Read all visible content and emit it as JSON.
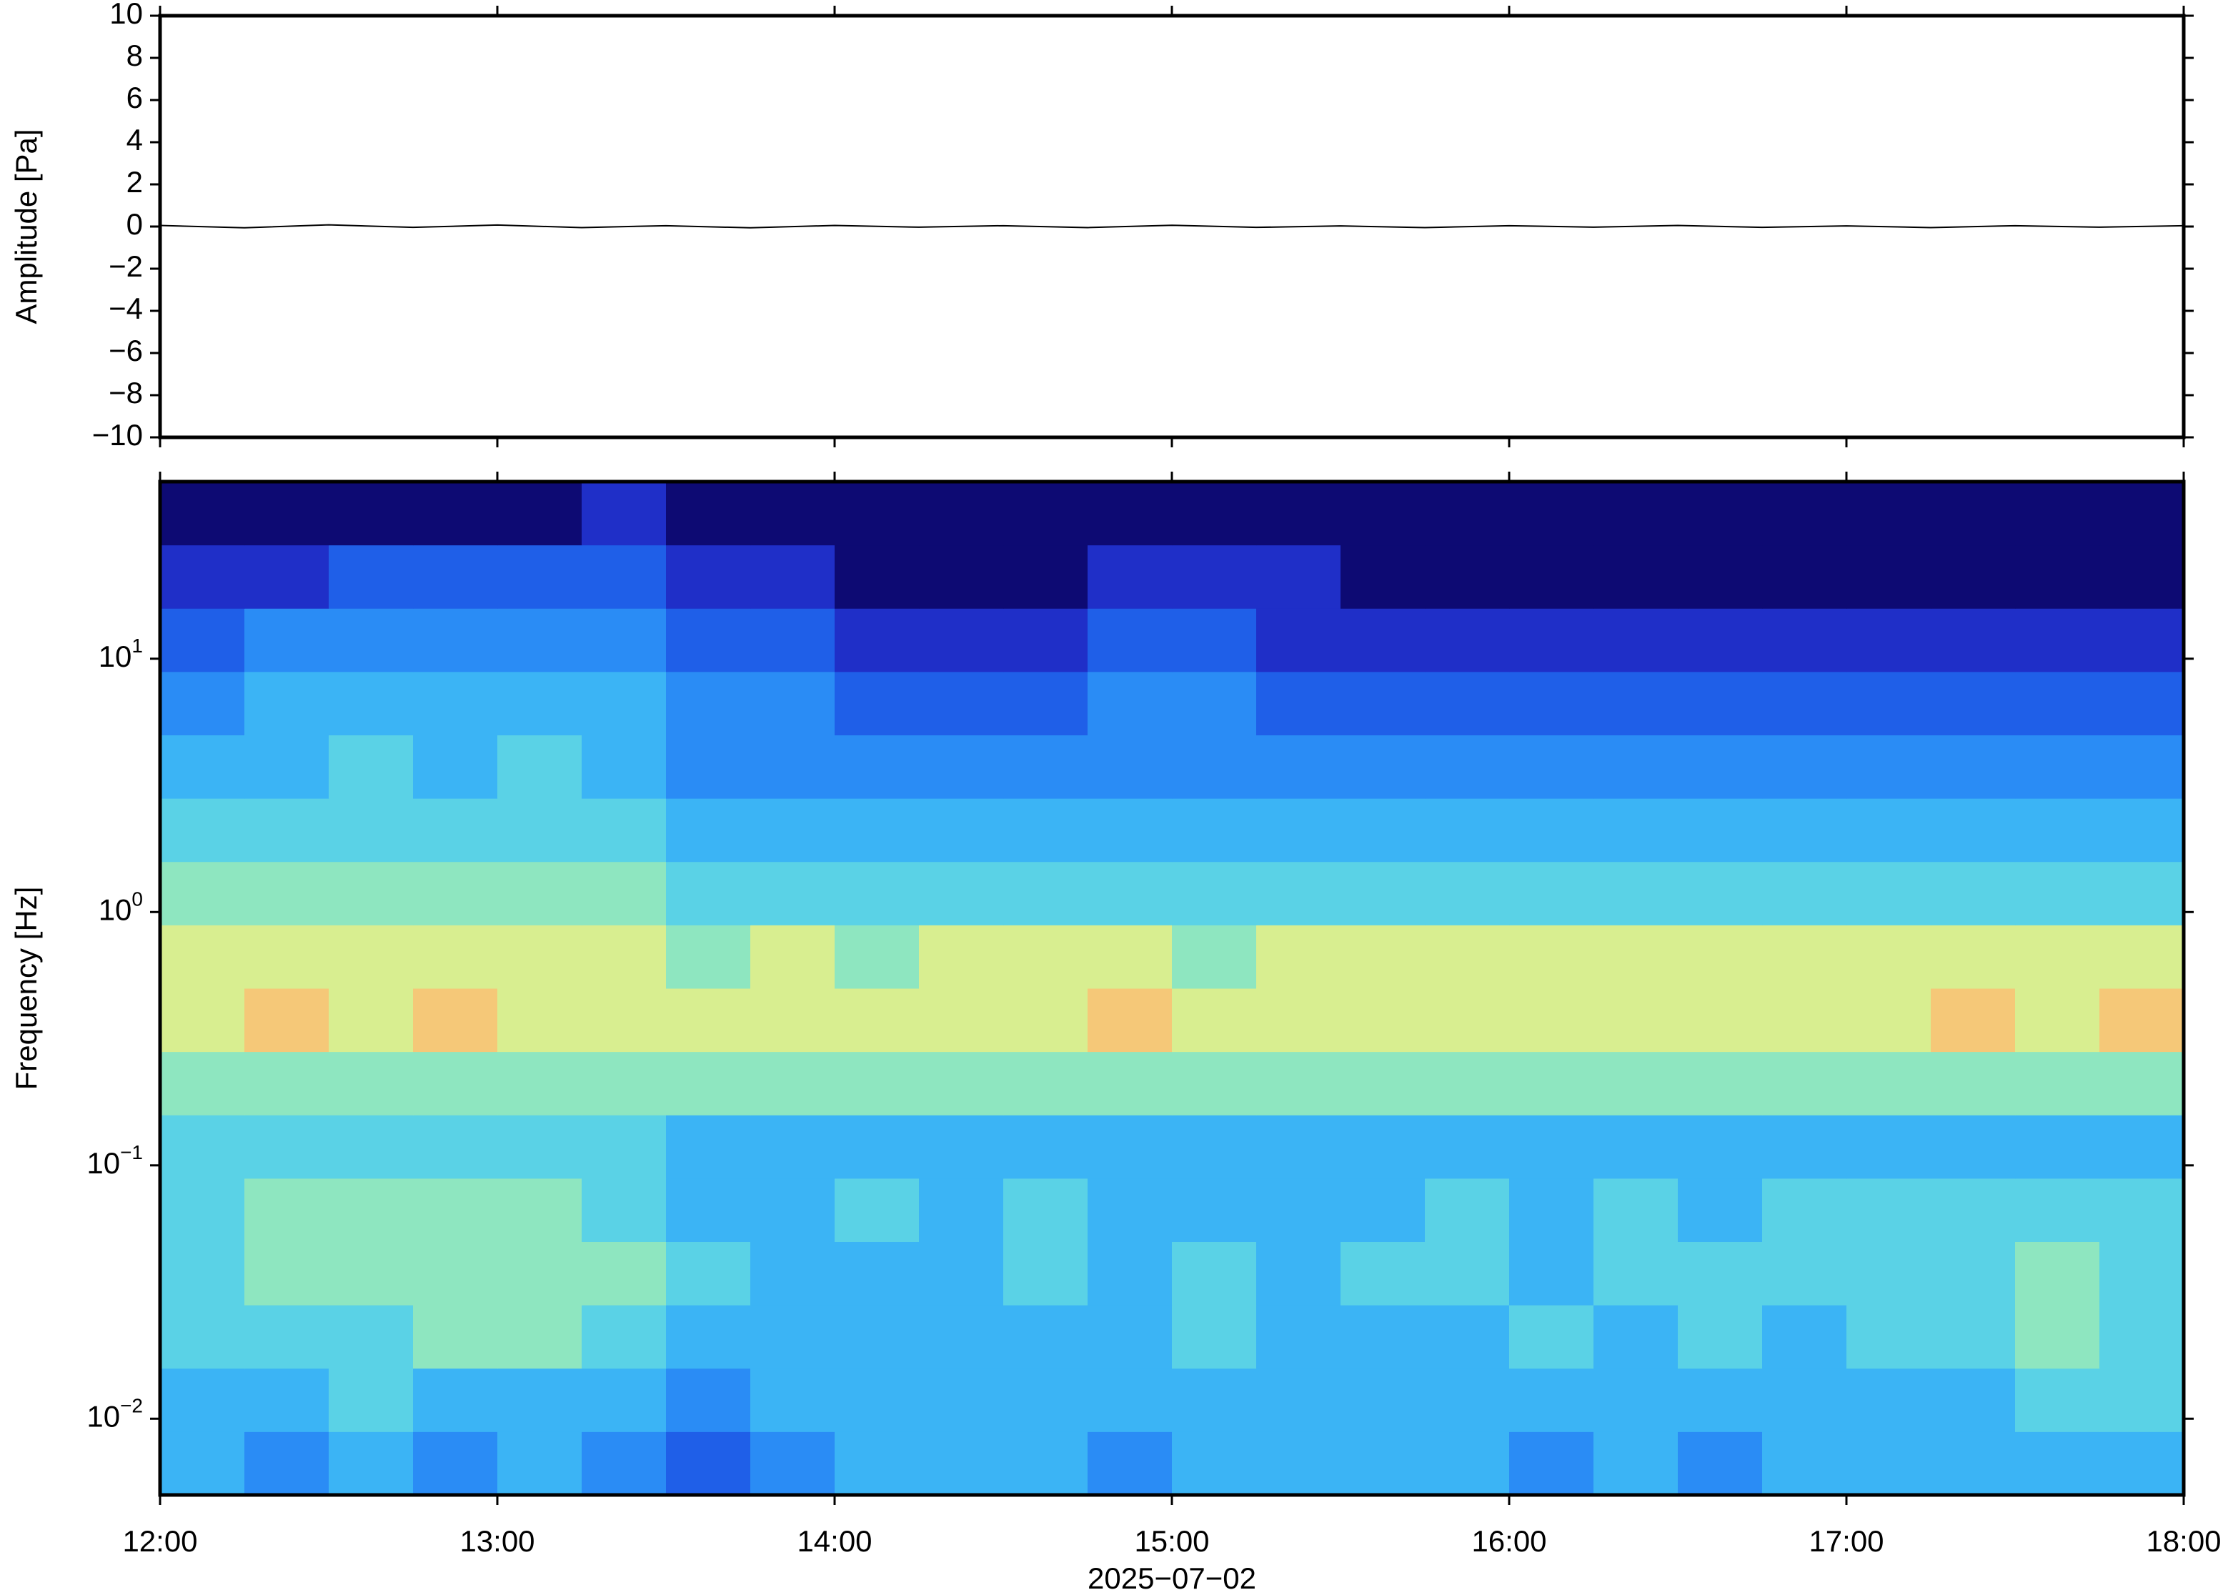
{
  "chart_data": [
    {
      "type": "line",
      "ylabel": "Amplitude [Pa]",
      "color": "#000000",
      "x": [
        12,
        12.25,
        12.5,
        12.75,
        13,
        13.25,
        13.5,
        13.75,
        14,
        14.25,
        14.5,
        14.75,
        15,
        15.25,
        15.5,
        15.75,
        16,
        16.25,
        16.5,
        16.75,
        17,
        17.25,
        17.5,
        17.75,
        18
      ],
      "values": [
        0.05,
        -0.06,
        0.08,
        -0.04,
        0.07,
        -0.05,
        0.04,
        -0.06,
        0.05,
        -0.03,
        0.04,
        -0.05,
        0.06,
        -0.04,
        0.03,
        -0.05,
        0.04,
        -0.03,
        0.05,
        -0.04,
        0.03,
        -0.05,
        0.04,
        -0.03,
        0.04
      ],
      "xlim": [
        12,
        18
      ],
      "xticks": [
        12,
        13,
        14,
        15,
        16,
        17,
        18
      ],
      "ylim": [
        -10,
        10
      ],
      "yticks": [
        {
          "value": -10,
          "label": "−10"
        },
        {
          "value": -8,
          "label": "−8"
        },
        {
          "value": -6,
          "label": "−6"
        },
        {
          "value": -4,
          "label": "−4"
        },
        {
          "value": -2,
          "label": "−2"
        },
        0,
        2,
        4,
        6,
        8,
        10
      ]
    },
    {
      "type": "heatmap",
      "ylabel": "Frequency [Hz]",
      "xlabel": "2025−07−02",
      "yscale": "log",
      "xlim": [
        12,
        18
      ],
      "xticks": [
        {
          "value": 12,
          "label": "12:00"
        },
        {
          "value": 13,
          "label": "13:00"
        },
        {
          "value": 14,
          "label": "14:00"
        },
        {
          "value": 15,
          "label": "15:00"
        },
        {
          "value": 16,
          "label": "16:00"
        },
        {
          "value": 17,
          "label": "17:00"
        },
        {
          "value": 18,
          "label": "18:00"
        }
      ],
      "ylim": [
        0.005,
        50
      ],
      "yticks": [
        {
          "value": 0.01,
          "label": "10",
          "exponent": "−2"
        },
        {
          "value": 0.1,
          "label": "10",
          "exponent": "−1"
        },
        {
          "value": 1,
          "label": "10",
          "exponent": "0"
        },
        {
          "value": 10,
          "label": "10",
          "exponent": "1"
        }
      ],
      "colors": [
        "#0d0a73",
        "#1f2fc8",
        "#1f5fe8",
        "#2a8cf5",
        "#3bb4f5",
        "#5ad2e6",
        "#8ee6c0",
        "#d8ee90",
        "#f5c878"
      ],
      "z": [
        [
          4,
          3,
          4,
          3,
          4,
          3,
          2,
          3,
          4,
          4,
          4,
          3,
          4,
          4,
          4,
          4,
          3,
          4,
          3,
          4,
          4,
          4,
          4,
          4
        ],
        [
          4,
          4,
          5,
          4,
          4,
          4,
          3,
          4,
          4,
          4,
          4,
          4,
          4,
          4,
          4,
          4,
          4,
          4,
          4,
          4,
          4,
          4,
          5,
          5
        ],
        [
          5,
          5,
          5,
          6,
          6,
          5,
          4,
          4,
          4,
          4,
          4,
          4,
          5,
          4,
          4,
          4,
          5,
          4,
          5,
          4,
          5,
          5,
          6,
          5
        ],
        [
          5,
          6,
          6,
          6,
          6,
          6,
          5,
          4,
          4,
          4,
          5,
          4,
          5,
          4,
          5,
          5,
          4,
          5,
          5,
          5,
          5,
          5,
          6,
          5
        ],
        [
          5,
          6,
          6,
          6,
          6,
          5,
          4,
          4,
          5,
          4,
          5,
          4,
          4,
          4,
          4,
          5,
          4,
          5,
          4,
          5,
          5,
          5,
          5,
          5
        ],
        [
          5,
          5,
          5,
          5,
          5,
          5,
          4,
          4,
          4,
          4,
          4,
          4,
          4,
          4,
          4,
          4,
          4,
          4,
          4,
          4,
          4,
          4,
          4,
          4
        ],
        [
          6,
          6,
          6,
          6,
          6,
          6,
          6,
          6,
          6,
          6,
          6,
          6,
          6,
          6,
          6,
          6,
          6,
          6,
          6,
          6,
          6,
          6,
          6,
          6
        ],
        [
          7,
          8,
          7,
          8,
          7,
          7,
          7,
          7,
          7,
          7,
          7,
          8,
          7,
          7,
          7,
          7,
          7,
          7,
          7,
          7,
          7,
          8,
          7,
          8
        ],
        [
          7,
          7,
          7,
          7,
          7,
          7,
          6,
          7,
          6,
          7,
          7,
          7,
          6,
          7,
          7,
          7,
          7,
          7,
          7,
          7,
          7,
          7,
          7,
          7
        ],
        [
          6,
          6,
          6,
          6,
          6,
          6,
          5,
          5,
          5,
          5,
          5,
          5,
          5,
          5,
          5,
          5,
          5,
          5,
          5,
          5,
          5,
          5,
          5,
          5
        ],
        [
          5,
          5,
          5,
          5,
          5,
          5,
          4,
          4,
          4,
          4,
          4,
          4,
          4,
          4,
          4,
          4,
          4,
          4,
          4,
          4,
          4,
          4,
          4,
          4
        ],
        [
          4,
          4,
          5,
          4,
          5,
          4,
          3,
          3,
          3,
          3,
          3,
          3,
          3,
          3,
          3,
          3,
          3,
          3,
          3,
          3,
          3,
          3,
          3,
          3
        ],
        [
          3,
          4,
          4,
          4,
          4,
          4,
          3,
          3,
          2,
          2,
          2,
          3,
          3,
          2,
          2,
          2,
          2,
          2,
          2,
          2,
          2,
          2,
          2,
          2
        ],
        [
          2,
          3,
          3,
          3,
          3,
          3,
          2,
          2,
          1,
          1,
          1,
          2,
          2,
          1,
          1,
          1,
          1,
          1,
          1,
          1,
          1,
          1,
          1,
          1
        ],
        [
          1,
          1,
          2,
          2,
          2,
          2,
          1,
          1,
          0,
          0,
          0,
          1,
          1,
          1,
          0,
          0,
          0,
          0,
          0,
          0,
          0,
          0,
          0,
          0
        ],
        [
          0,
          0,
          0,
          0,
          0,
          1,
          0,
          0,
          0,
          0,
          0,
          0,
          0,
          0,
          0,
          0,
          0,
          0,
          0,
          0,
          0,
          0,
          0,
          0
        ]
      ]
    }
  ]
}
